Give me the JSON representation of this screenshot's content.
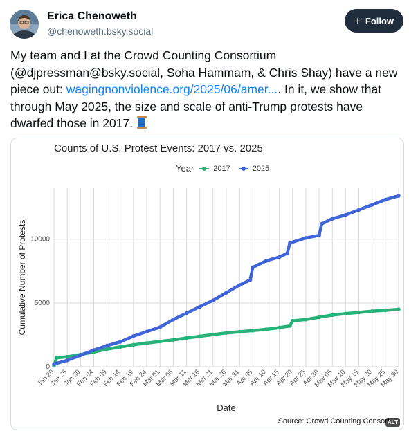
{
  "author": {
    "name": "Erica Chenoweth",
    "handle": "@chenoweth.bsky.social"
  },
  "follow_label": "Follow",
  "post": {
    "text_before": "My team and I at the Crowd Counting Consortium (@djpressman@bsky.social, Soha Hammam, & Chris Shay) have a new piece out: ",
    "link_text": "wagingnonviolence.org/2025/06/amer...",
    "text_after": ". In it, we show that through May 2025, the size and scale of anti-Trump protests have dwarfed those in 2017. ",
    "emoji_name": "thread-spool-icon"
  },
  "image": {
    "alt_badge": "ALT",
    "source": "Source: Crowd Counting Consort"
  },
  "chart_data": {
    "type": "line",
    "title": "Counts of U.S. Protest Events: 2017 vs. 2025",
    "legend_title": "Year",
    "legend_placement": "top",
    "xlabel": "Date",
    "ylabel": "Cumulative Number of Protests",
    "ylim": [
      0,
      14000
    ],
    "yticks": [
      0,
      5000,
      10000
    ],
    "ytick_labels": [
      "0",
      "5000",
      "10000"
    ],
    "xticks": [
      "Jan 20",
      "Jan 25",
      "Jan 30",
      "Feb 04",
      "Feb 09",
      "Feb 14",
      "Feb 19",
      "Feb 24",
      "Mar 01",
      "Mar 06",
      "Mar 11",
      "Mar 16",
      "Mar 21",
      "Mar 26",
      "Mar 31",
      "Apr 05",
      "Apr 10",
      "Apr 15",
      "Apr 20",
      "Apr 25",
      "Apr 30",
      "May 05",
      "May 10",
      "May 15",
      "May 20",
      "May 25",
      "May 30"
    ],
    "grid": true,
    "series": [
      {
        "name": "2017",
        "color": "#27b27a",
        "x": [
          "Jan 20",
          "Jan 21",
          "Jan 25",
          "Jan 30",
          "Feb 04",
          "Feb 09",
          "Feb 14",
          "Feb 19",
          "Feb 24",
          "Mar 01",
          "Mar 06",
          "Mar 11",
          "Mar 16",
          "Mar 21",
          "Mar 26",
          "Mar 31",
          "Apr 05",
          "Apr 10",
          "Apr 15",
          "Apr 19",
          "Apr 20",
          "Apr 25",
          "Apr 30",
          "May 05",
          "May 10",
          "May 15",
          "May 20",
          "May 25",
          "May 30"
        ],
        "y": [
          100,
          700,
          780,
          950,
          1150,
          1380,
          1550,
          1720,
          1850,
          1980,
          2100,
          2250,
          2380,
          2520,
          2650,
          2740,
          2830,
          2930,
          3060,
          3200,
          3600,
          3700,
          3880,
          4050,
          4160,
          4260,
          4350,
          4420,
          4500
        ]
      },
      {
        "name": "2025",
        "color": "#3f65d8",
        "x": [
          "Jan 20",
          "Jan 25",
          "Jan 30",
          "Feb 04",
          "Feb 09",
          "Feb 14",
          "Feb 19",
          "Feb 24",
          "Mar 01",
          "Mar 06",
          "Mar 11",
          "Mar 16",
          "Mar 21",
          "Mar 26",
          "Mar 31",
          "Apr 04",
          "Apr 05",
          "Apr 10",
          "Apr 15",
          "Apr 18",
          "Apr 19",
          "Apr 25",
          "Apr 30",
          "May 01",
          "May 05",
          "May 10",
          "May 15",
          "May 20",
          "May 25",
          "May 30"
        ],
        "y": [
          200,
          500,
          900,
          1300,
          1650,
          1950,
          2400,
          2750,
          3100,
          3700,
          4200,
          4700,
          5200,
          5800,
          6400,
          6800,
          7800,
          8300,
          8600,
          8900,
          9700,
          10100,
          10300,
          11200,
          11600,
          11900,
          12300,
          12700,
          13100,
          13400
        ]
      }
    ]
  }
}
